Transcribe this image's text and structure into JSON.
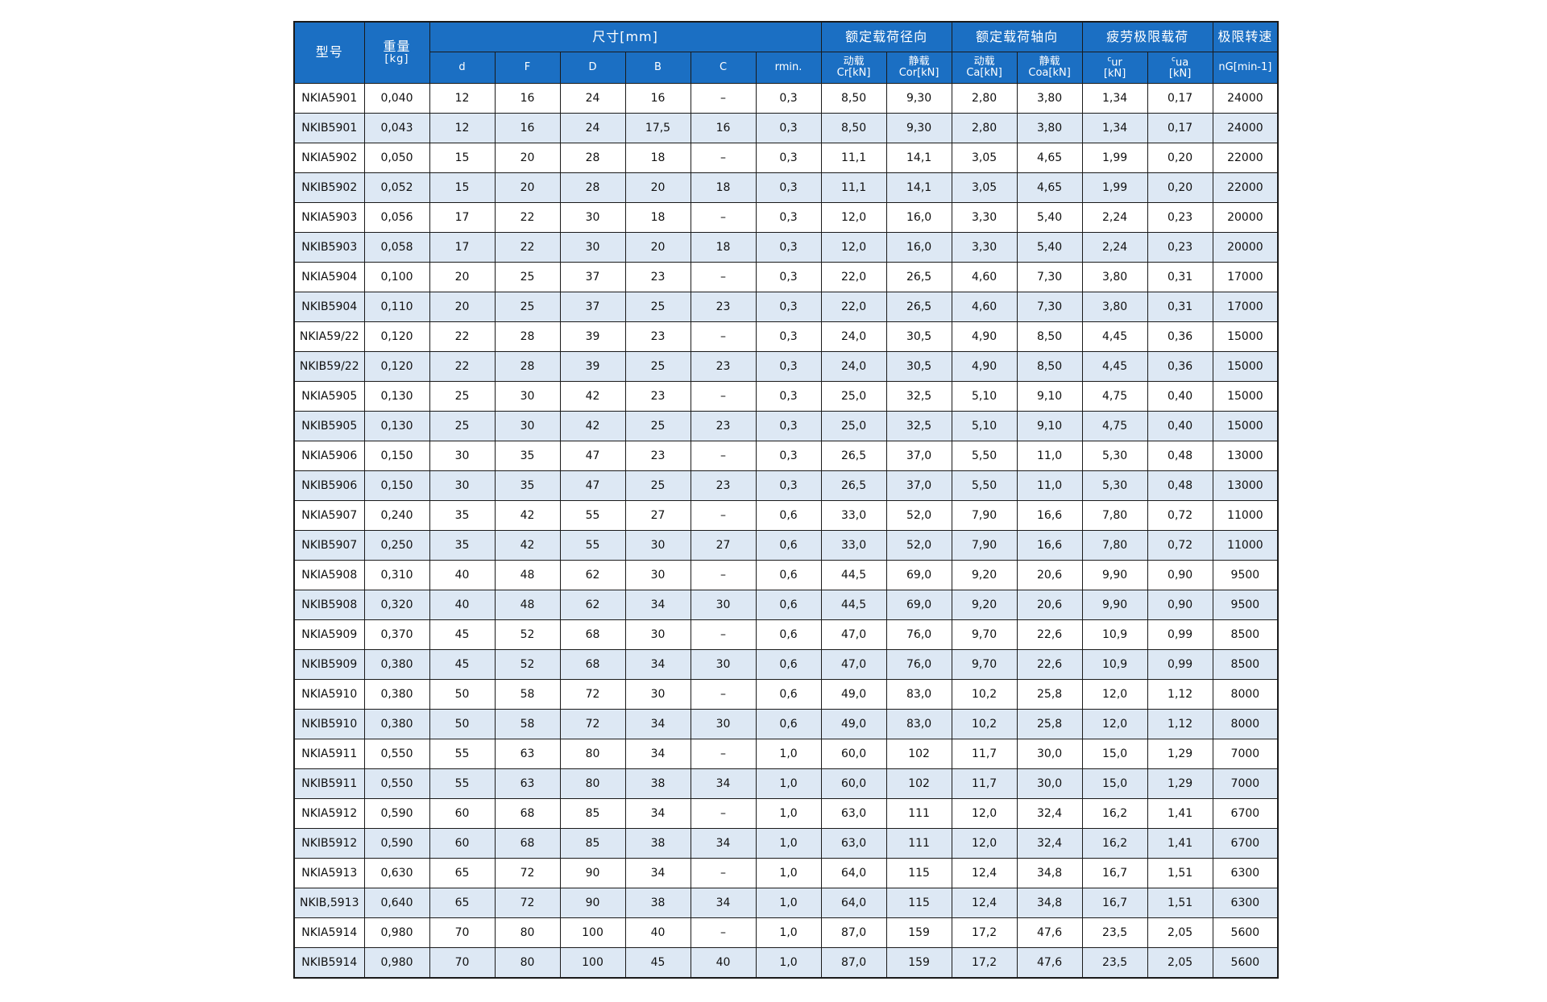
{
  "table": {
    "header": {
      "model": "型号",
      "weight_line1": "重量",
      "weight_line2": "[kg]",
      "dimensions": "尺寸[mm]",
      "radial_load": "额定载荷径向",
      "axial_load": "额定载荷轴向",
      "fatigue_limit": "疲劳极限载荷",
      "limit_speed": "极限转速",
      "d": "d",
      "F": "F",
      "D": "D",
      "B": "B",
      "C": "C",
      "rmin": "rmin.",
      "dynamic_label": "动载",
      "static_label": "静载",
      "cr_unit": "Cr[kN]",
      "cor_unit": "Cor[kN]",
      "ca_unit": "Ca[kN]",
      "coa_unit": "Coa[kN]",
      "cur_letter": "c",
      "cur_sub": "ur",
      "cua_letter": "c",
      "cua_sub": "ua",
      "kn_unit": "[kN]",
      "speed_unit": "nG[min-1]"
    },
    "rows": [
      [
        "NKIA5901",
        "0,040",
        "12",
        "16",
        "24",
        "16",
        "–",
        "0,3",
        "8,50",
        "9,30",
        "2,80",
        "3,80",
        "1,34",
        "0,17",
        "24000"
      ],
      [
        "NKIB5901",
        "0,043",
        "12",
        "16",
        "24",
        "17,5",
        "16",
        "0,3",
        "8,50",
        "9,30",
        "2,80",
        "3,80",
        "1,34",
        "0,17",
        "24000"
      ],
      [
        "NKIA5902",
        "0,050",
        "15",
        "20",
        "28",
        "18",
        "–",
        "0,3",
        "11,1",
        "14,1",
        "3,05",
        "4,65",
        "1,99",
        "0,20",
        "22000"
      ],
      [
        "NKIB5902",
        "0,052",
        "15",
        "20",
        "28",
        "20",
        "18",
        "0,3",
        "11,1",
        "14,1",
        "3,05",
        "4,65",
        "1,99",
        "0,20",
        "22000"
      ],
      [
        "NKIA5903",
        "0,056",
        "17",
        "22",
        "30",
        "18",
        "–",
        "0,3",
        "12,0",
        "16,0",
        "3,30",
        "5,40",
        "2,24",
        "0,23",
        "20000"
      ],
      [
        "NKIB5903",
        "0,058",
        "17",
        "22",
        "30",
        "20",
        "18",
        "0,3",
        "12,0",
        "16,0",
        "3,30",
        "5,40",
        "2,24",
        "0,23",
        "20000"
      ],
      [
        "NKIA5904",
        "0,100",
        "20",
        "25",
        "37",
        "23",
        "–",
        "0,3",
        "22,0",
        "26,5",
        "4,60",
        "7,30",
        "3,80",
        "0,31",
        "17000"
      ],
      [
        "NKIB5904",
        "0,110",
        "20",
        "25",
        "37",
        "25",
        "23",
        "0,3",
        "22,0",
        "26,5",
        "4,60",
        "7,30",
        "3,80",
        "0,31",
        "17000"
      ],
      [
        "NKIA59/22",
        "0,120",
        "22",
        "28",
        "39",
        "23",
        "–",
        "0,3",
        "24,0",
        "30,5",
        "4,90",
        "8,50",
        "4,45",
        "0,36",
        "15000"
      ],
      [
        "NKIB59/22",
        "0,120",
        "22",
        "28",
        "39",
        "25",
        "23",
        "0,3",
        "24,0",
        "30,5",
        "4,90",
        "8,50",
        "4,45",
        "0,36",
        "15000"
      ],
      [
        "NKIA5905",
        "0,130",
        "25",
        "30",
        "42",
        "23",
        "–",
        "0,3",
        "25,0",
        "32,5",
        "5,10",
        "9,10",
        "4,75",
        "0,40",
        "15000"
      ],
      [
        "NKIB5905",
        "0,130",
        "25",
        "30",
        "42",
        "25",
        "23",
        "0,3",
        "25,0",
        "32,5",
        "5,10",
        "9,10",
        "4,75",
        "0,40",
        "15000"
      ],
      [
        "NKIA5906",
        "0,150",
        "30",
        "35",
        "47",
        "23",
        "–",
        "0,3",
        "26,5",
        "37,0",
        "5,50",
        "11,0",
        "5,30",
        "0,48",
        "13000"
      ],
      [
        "NKIB5906",
        "0,150",
        "30",
        "35",
        "47",
        "25",
        "23",
        "0,3",
        "26,5",
        "37,0",
        "5,50",
        "11,0",
        "5,30",
        "0,48",
        "13000"
      ],
      [
        "NKIA5907",
        "0,240",
        "35",
        "42",
        "55",
        "27",
        "–",
        "0,6",
        "33,0",
        "52,0",
        "7,90",
        "16,6",
        "7,80",
        "0,72",
        "11000"
      ],
      [
        "NKIB5907",
        "0,250",
        "35",
        "42",
        "55",
        "30",
        "27",
        "0,6",
        "33,0",
        "52,0",
        "7,90",
        "16,6",
        "7,80",
        "0,72",
        "11000"
      ],
      [
        "NKIA5908",
        "0,310",
        "40",
        "48",
        "62",
        "30",
        "–",
        "0,6",
        "44,5",
        "69,0",
        "9,20",
        "20,6",
        "9,90",
        "0,90",
        "9500"
      ],
      [
        "NKIB5908",
        "0,320",
        "40",
        "48",
        "62",
        "34",
        "30",
        "0,6",
        "44,5",
        "69,0",
        "9,20",
        "20,6",
        "9,90",
        "0,90",
        "9500"
      ],
      [
        "NKIA5909",
        "0,370",
        "45",
        "52",
        "68",
        "30",
        "–",
        "0,6",
        "47,0",
        "76,0",
        "9,70",
        "22,6",
        "10,9",
        "0,99",
        "8500"
      ],
      [
        "NKIB5909",
        "0,380",
        "45",
        "52",
        "68",
        "34",
        "30",
        "0,6",
        "47,0",
        "76,0",
        "9,70",
        "22,6",
        "10,9",
        "0,99",
        "8500"
      ],
      [
        "NKIA5910",
        "0,380",
        "50",
        "58",
        "72",
        "30",
        "–",
        "0,6",
        "49,0",
        "83,0",
        "10,2",
        "25,8",
        "12,0",
        "1,12",
        "8000"
      ],
      [
        "NKIB5910",
        "0,380",
        "50",
        "58",
        "72",
        "34",
        "30",
        "0,6",
        "49,0",
        "83,0",
        "10,2",
        "25,8",
        "12,0",
        "1,12",
        "8000"
      ],
      [
        "NKIA5911",
        "0,550",
        "55",
        "63",
        "80",
        "34",
        "–",
        "1,0",
        "60,0",
        "102",
        "11,7",
        "30,0",
        "15,0",
        "1,29",
        "7000"
      ],
      [
        "NKIB5911",
        "0,550",
        "55",
        "63",
        "80",
        "38",
        "34",
        "1,0",
        "60,0",
        "102",
        "11,7",
        "30,0",
        "15,0",
        "1,29",
        "7000"
      ],
      [
        "NKIA5912",
        "0,590",
        "60",
        "68",
        "85",
        "34",
        "–",
        "1,0",
        "63,0",
        "111",
        "12,0",
        "32,4",
        "16,2",
        "1,41",
        "6700"
      ],
      [
        "NKIB5912",
        "0,590",
        "60",
        "68",
        "85",
        "38",
        "34",
        "1,0",
        "63,0",
        "111",
        "12,0",
        "32,4",
        "16,2",
        "1,41",
        "6700"
      ],
      [
        "NKIA5913",
        "0,630",
        "65",
        "72",
        "90",
        "34",
        "–",
        "1,0",
        "64,0",
        "115",
        "12,4",
        "34,8",
        "16,7",
        "1,51",
        "6300"
      ],
      [
        "NKIB,5913",
        "0,640",
        "65",
        "72",
        "90",
        "38",
        "34",
        "1,0",
        "64,0",
        "115",
        "12,4",
        "34,8",
        "16,7",
        "1,51",
        "6300"
      ],
      [
        "NKIA5914",
        "0,980",
        "70",
        "80",
        "100",
        "40",
        "–",
        "1,0",
        "87,0",
        "159",
        "17,2",
        "47,6",
        "23,5",
        "2,05",
        "5600"
      ],
      [
        "NKIB5914",
        "0,980",
        "70",
        "80",
        "100",
        "45",
        "40",
        "1,0",
        "87,0",
        "159",
        "17,2",
        "47,6",
        "23,5",
        "2,05",
        "5600"
      ]
    ]
  }
}
